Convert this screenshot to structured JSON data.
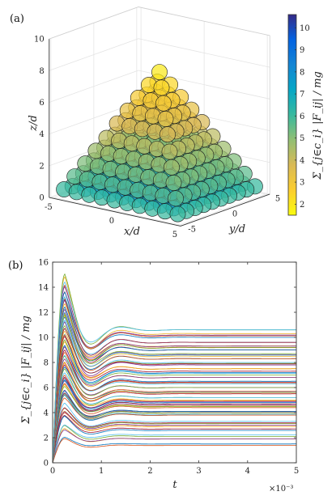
{
  "chart_data": [
    {
      "panel_label": "(a)",
      "type": "scatter3d",
      "description_shown": "pyramid of spheres colored by total contact force",
      "xlabel": "x/d",
      "ylabel": "y/d",
      "zlabel": "z/d",
      "x_ticks": [
        "-5",
        "0",
        "5"
      ],
      "y_ticks": [
        "-5",
        "0",
        "5"
      ],
      "z_ticks": [
        "0",
        "2",
        "4",
        "6",
        "8",
        "10"
      ],
      "zlim": [
        0,
        10
      ],
      "pyramid_layers": [
        {
          "z": 0.5,
          "n": 10
        },
        {
          "z": 1.3,
          "n": 9
        },
        {
          "z": 2.1,
          "n": 8
        },
        {
          "z": 2.9,
          "n": 7
        },
        {
          "z": 3.7,
          "n": 6
        },
        {
          "z": 4.6,
          "n": 5
        },
        {
          "z": 5.4,
          "n": 4
        },
        {
          "z": 6.2,
          "n": 3
        },
        {
          "z": 7.0,
          "n": 2
        },
        {
          "z": 7.8,
          "n": 1
        }
      ],
      "colorbar": {
        "label": "Σ_{j∈c_i} |F_ij| / mg",
        "ticks": [
          "2",
          "3",
          "4",
          "5",
          "6",
          "7",
          "8",
          "9",
          "10"
        ],
        "range": [
          1.5,
          10.6
        ],
        "colormap": [
          "#352a87",
          "#0363e1",
          "#1485d4",
          "#06a7c6",
          "#38b99e",
          "#92bf73",
          "#d9ba56",
          "#fcce2e",
          "#f9fb0e"
        ]
      }
    },
    {
      "panel_label": "(b)",
      "type": "line",
      "xlabel": "t",
      "ylabel": "Σ_{j∈c_i} |F_ij| / mg",
      "x_ticks": [
        "0",
        "1",
        "2",
        "3",
        "4",
        "5"
      ],
      "x_multiplier": "×10⁻³",
      "y_ticks": [
        "0",
        "2",
        "4",
        "6",
        "8",
        "10",
        "12",
        "14",
        "16"
      ],
      "xlim": [
        0,
        0.005
      ],
      "ylim": [
        0,
        16
      ],
      "grid": false,
      "legend": "none",
      "series_summary": "approximately 100 damped force histories, one per sphere, each peaking near t = 0.25×10⁻³ and settling to its steady-state value by about t = 2×10⁻³",
      "steady_state_values": [
        1.5,
        1.9,
        2.1,
        2.7,
        2.9,
        3.0,
        3.3,
        3.8,
        3.9,
        4.0,
        4.1,
        4.4,
        4.6,
        4.7,
        4.8,
        5.0,
        5.2,
        5.5,
        5.7,
        6.0,
        6.3,
        6.5,
        6.8,
        7.0,
        7.3,
        7.5,
        7.8,
        8.0,
        8.3,
        8.5,
        8.7,
        9.0,
        9.2,
        9.3,
        9.6,
        10.0,
        10.3,
        10.6
      ],
      "peak_time": 0.00025,
      "max_peak_value": 15.2,
      "series_colors": [
        "#0072bd",
        "#d95319",
        "#edb120",
        "#7e2f8e",
        "#77ac30",
        "#4dbeee",
        "#a2142f"
      ]
    }
  ]
}
